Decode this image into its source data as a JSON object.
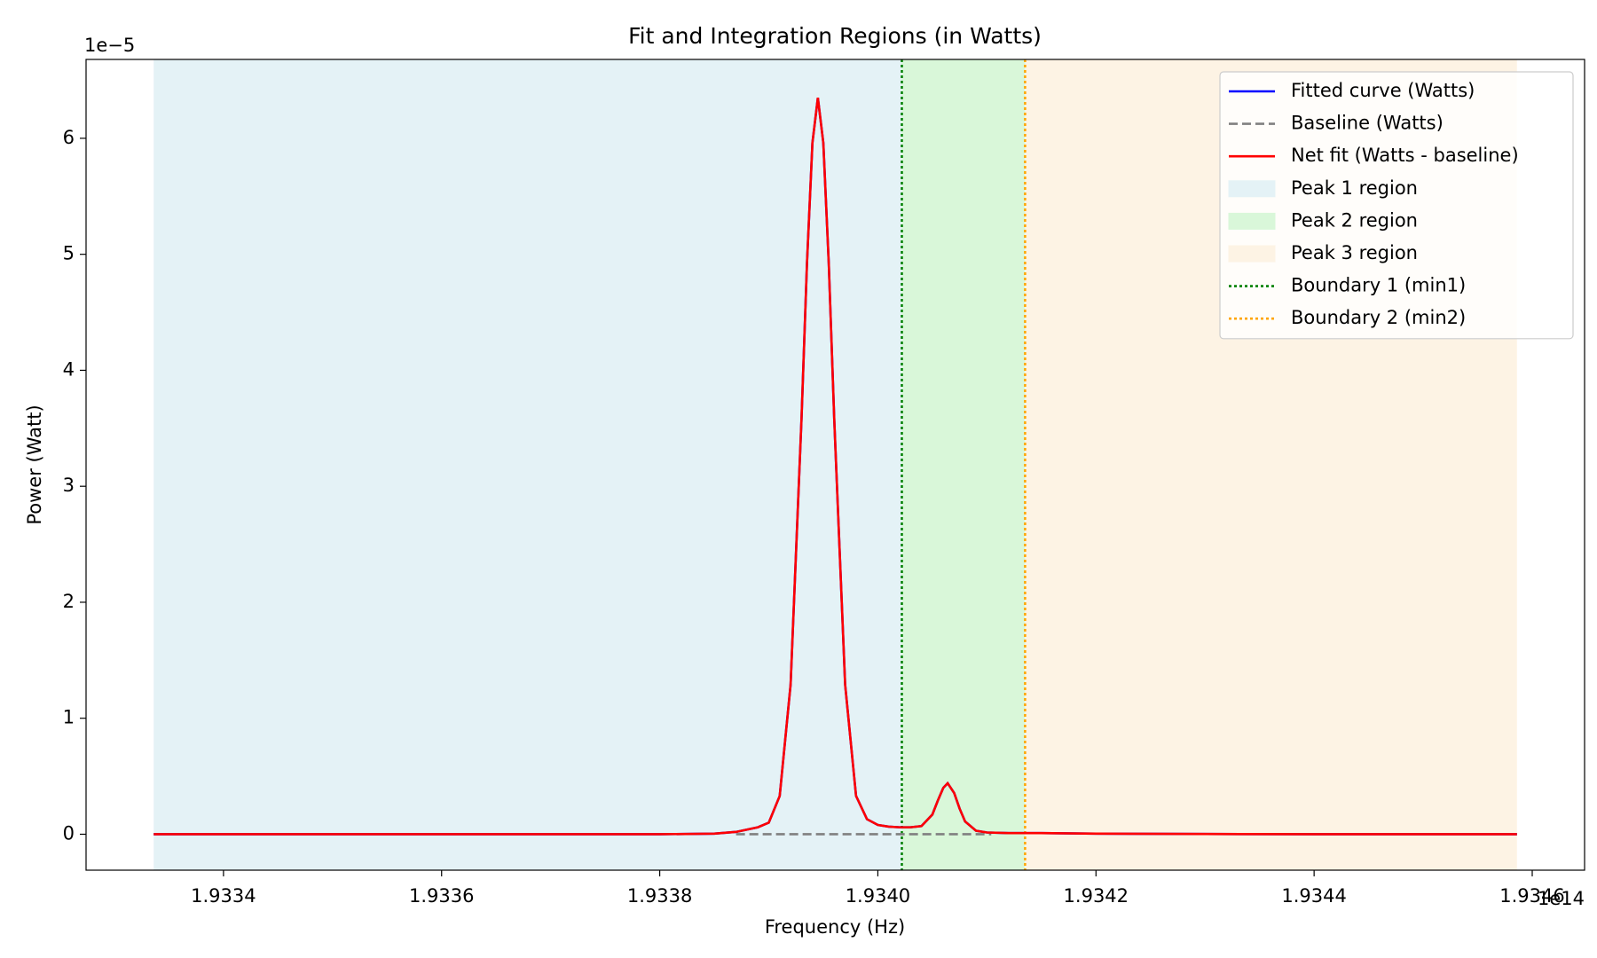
{
  "chart_data": {
    "type": "line",
    "title": "Fit and Integration Regions (in Watts)",
    "x_label": "Frequency (Hz)",
    "y_label": "Power (Watt)",
    "x_offset_label": "1e14",
    "y_offset_label": "1e−5",
    "xlim": [
      1.933274,
      1.934648
    ],
    "ylim": [
      -0.31,
      6.68
    ],
    "xticks": [
      1.9334,
      1.9336,
      1.9338,
      {
        "value": 1.934,
        "label": "1.9340"
      },
      1.9342,
      1.9344,
      1.9346
    ],
    "yticks": [
      0,
      1,
      2,
      3,
      4,
      5,
      6
    ],
    "legend_position": "upper right",
    "regions": [
      {
        "name": "Peak 1 region",
        "color": "#e4f2f6",
        "x": [
          1.933336,
          1.934022
        ]
      },
      {
        "name": "Peak 2 region",
        "color": "#d9f7d9",
        "x": [
          1.934022,
          1.934135
        ]
      },
      {
        "name": "Peak 3 region",
        "color": "#fdf3e4",
        "x": [
          1.934135,
          1.934586
        ]
      }
    ],
    "x": [
      1.933336,
      1.9335,
      1.9336,
      1.9337,
      1.9338,
      1.93385,
      1.93387,
      1.93389,
      1.9339,
      1.93391,
      1.93392,
      1.93393,
      1.933935,
      1.93394,
      1.933945,
      1.93395,
      1.933955,
      1.93396,
      1.93397,
      1.93398,
      1.93399,
      1.934,
      1.93401,
      1.93402,
      1.93403,
      1.93404,
      1.93405,
      1.934055,
      1.93406,
      1.934064,
      1.93407,
      1.934075,
      1.93408,
      1.93409,
      1.9341,
      1.93412,
      1.93415,
      1.9342,
      1.9343,
      1.9344,
      1.9345,
      1.934586
    ],
    "series": [
      {
        "name": "Fitted curve (Watts)",
        "color": "#0000ff",
        "style": "solid",
        "values": [
          0,
          0,
          0,
          0,
          0,
          0.005,
          0.02,
          0.06,
          0.1,
          0.33,
          1.29,
          3.58,
          4.92,
          5.96,
          6.35,
          5.96,
          4.92,
          3.58,
          1.29,
          0.33,
          0.13,
          0.08,
          0.065,
          0.06,
          0.06,
          0.07,
          0.17,
          0.29,
          0.4,
          0.44,
          0.355,
          0.22,
          0.11,
          0.03,
          0.015,
          0.01,
          0.01,
          0.005,
          0.002,
          0,
          0,
          0
        ]
      },
      {
        "name": "Baseline (Watts)",
        "color": "#808080",
        "style": "dashed",
        "x": [
          1.93387,
          1.934104
        ],
        "values": [
          0,
          0
        ]
      },
      {
        "name": "Net fit (Watts - baseline)",
        "color": "#ff0000",
        "style": "solid",
        "values": [
          0,
          0,
          0,
          0,
          0,
          0.005,
          0.02,
          0.06,
          0.1,
          0.33,
          1.29,
          3.58,
          4.92,
          5.96,
          6.35,
          5.96,
          4.92,
          3.58,
          1.29,
          0.33,
          0.13,
          0.08,
          0.065,
          0.06,
          0.06,
          0.07,
          0.17,
          0.29,
          0.4,
          0.44,
          0.355,
          0.22,
          0.11,
          0.03,
          0.015,
          0.01,
          0.01,
          0.005,
          0.002,
          0,
          0,
          0
        ]
      }
    ],
    "boundaries": [
      {
        "name": "Boundary 1 (min1)",
        "color": "#008000",
        "x": 1.934022
      },
      {
        "name": "Boundary 2 (min2)",
        "color": "#ffa500",
        "x": 1.934135
      }
    ]
  }
}
